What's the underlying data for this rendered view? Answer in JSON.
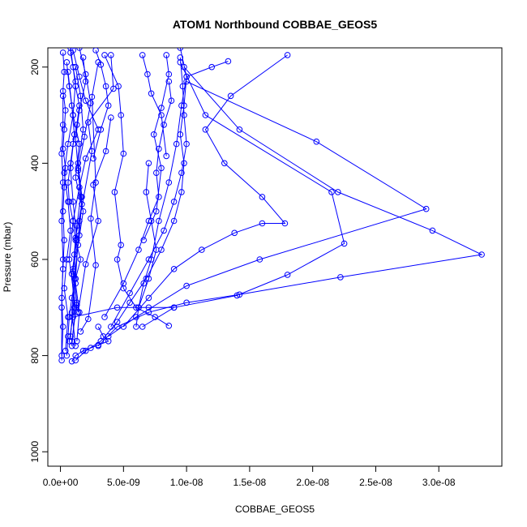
{
  "chart_data": {
    "type": "line",
    "title": "ATOM1 Northbound COBBAE_GEOS5",
    "xlabel": "COBBAE_GEOS5",
    "ylabel": "Pressure (mbar)",
    "xlim": [
      -1e-09,
      3.5e-08
    ],
    "ylim": [
      1030,
      160
    ],
    "y_reversed": true,
    "x_ticks": [
      0,
      5e-09,
      1e-08,
      1.5e-08,
      2e-08,
      2.5e-08,
      3e-08
    ],
    "x_tick_labels": [
      "0.0e+00",
      "5.0e-09",
      "1.0e-08",
      "1.5e-08",
      "2.0e-08",
      "2.5e-08",
      "3.0e-08"
    ],
    "y_ticks": [
      200,
      400,
      600,
      800,
      1000
    ],
    "y_tick_labels": [
      "200",
      "400",
      "600",
      "800",
      "1000"
    ],
    "grid": false,
    "marker": "open-circle",
    "color": "#0000ff",
    "series": [
      {
        "x": [
          8e-10,
          1e-09,
          1.2e-09,
          1.5e-09,
          1.3e-09,
          1e-09,
          8e-10,
          6e-10,
          7e-10,
          1e-09,
          1.2e-09,
          1.6e-09,
          1.2e-09,
          9e-10,
          7e-10,
          6e-10,
          5e-10
        ],
        "y": [
          160,
          200,
          240,
          280,
          320,
          360,
          400,
          440,
          480,
          520,
          560,
          600,
          640,
          680,
          720,
          760,
          800
        ]
      },
      {
        "x": [
          2e-10,
          3e-10,
          2e-10,
          4e-10,
          3e-10,
          2e-10,
          4e-10,
          3e-10,
          2e-10,
          3e-10,
          2e-10,
          1e-10,
          2e-10,
          1e-10
        ],
        "y": [
          170,
          210,
          250,
          290,
          330,
          370,
          410,
          450,
          500,
          560,
          620,
          680,
          740,
          810
        ]
      },
      {
        "x": [
          1.8e-09,
          2e-09,
          1.5e-09,
          1.2e-09,
          1.4e-09,
          1.6e-09,
          1.3e-09,
          1.1e-09,
          1.2e-09,
          1.5e-09,
          1.3e-09
        ],
        "y": [
          180,
          230,
          290,
          350,
          410,
          470,
          530,
          590,
          650,
          710,
          770
        ]
      },
      {
        "x": [
          4e-09,
          4.2e-09,
          2.2e-09,
          2.5e-09,
          1.5e-09,
          1.2e-09,
          8e-10
        ],
        "y": [
          175,
          245,
          315,
          375,
          520,
          640,
          760
        ]
      },
      {
        "x": [
          9.5e-09,
          1e-08,
          9.8e-09,
          9.5e-09,
          9.8e-09,
          9.6e-09,
          9e-09,
          8e-09,
          6.8e-09,
          5.5e-09,
          4.5e-09,
          3.2e-09,
          2e-09,
          1.2e-09
        ],
        "y": [
          160,
          220,
          280,
          340,
          400,
          460,
          520,
          580,
          640,
          690,
          730,
          770,
          790,
          810
        ]
      },
      {
        "x": [
          9.5e-09,
          9.7e-09,
          9.8e-09,
          1e-08,
          9.6e-09,
          9e-09,
          8.2e-09,
          7e-09,
          5.5e-09,
          4e-09
        ],
        "y": [
          180,
          240,
          300,
          360,
          420,
          480,
          540,
          600,
          670,
          740
        ]
      },
      {
        "x": [
          8.6e-09,
          8.8e-09,
          8.2e-09,
          7.8e-09,
          7.6e-09,
          7.8e-09,
          7e-09,
          6.2e-09,
          5e-09,
          3.5e-09
        ],
        "y": [
          230,
          270,
          320,
          370,
          420,
          470,
          520,
          580,
          650,
          720
        ]
      },
      {
        "x": [
          1.8e-08,
          1.35e-08,
          1.15e-08,
          1.3e-08,
          1.6e-08,
          1.78e-08,
          1.6e-08,
          1.38e-08,
          1.12e-08,
          9e-09,
          7e-09,
          5e-09
        ],
        "y": [
          175,
          260,
          330,
          400,
          470,
          525,
          525,
          545,
          580,
          620,
          680,
          740
        ]
      },
      {
        "x": [
          1e-08,
          2.03e-08,
          2.9e-08,
          1.58e-08,
          1e-08,
          6e-09,
          3.8e-09
        ],
        "y": [
          230,
          355,
          495,
          600,
          655,
          720,
          760
        ]
      },
      {
        "x": [
          9.8e-09,
          1.42e-08,
          2.2e-08,
          2.95e-08,
          3.34e-08,
          2.22e-08,
          1.42e-08,
          1e-08,
          7e-09,
          4.5e-09,
          3e-09
        ],
        "y": [
          200,
          330,
          460,
          540,
          590,
          637,
          673,
          690,
          710,
          740,
          780
        ]
      },
      {
        "x": [
          9.5e-09,
          1.15e-08,
          2.15e-08,
          2.25e-08,
          1.8e-08,
          1.4e-08,
          9e-09,
          6.5e-09
        ],
        "y": [
          190,
          300,
          460,
          567,
          632,
          675,
          700,
          740
        ]
      },
      {
        "x": [
          3.5e-09,
          4.6e-09,
          4.8e-09,
          5e-09,
          4.3e-09,
          4.8e-09,
          4.5e-09,
          5e-09,
          6e-09,
          7.5e-09,
          8.6e-09
        ],
        "y": [
          175,
          240,
          300,
          380,
          460,
          570,
          600,
          660,
          700,
          720,
          738
        ]
      },
      {
        "x": [
          1.33e-08,
          1.2e-08,
          1e-08,
          9.6e-09,
          9.2e-09,
          8.6e-09,
          7.8e-09,
          7.2e-09,
          6.6e-09,
          6.2e-09,
          6e-09
        ],
        "y": [
          188,
          200,
          220,
          280,
          360,
          440,
          520,
          600,
          650,
          700,
          740
        ]
      },
      {
        "x": [
          1e-09,
          1.5e-09,
          2e-09,
          3e-09,
          2e-09,
          1.5e-09,
          1e-09,
          7e-10,
          1.2e-09,
          9e-10
        ],
        "y": [
          165,
          220,
          270,
          330,
          390,
          450,
          520,
          600,
          700,
          780
        ]
      },
      {
        "x": [
          5e-10,
          7e-10,
          1e-09,
          6e-10,
          3e-10,
          6e-10,
          8e-10,
          5e-10,
          3e-10,
          6e-10,
          4e-10
        ],
        "y": [
          190,
          240,
          300,
          360,
          420,
          480,
          540,
          600,
          660,
          720,
          790
        ]
      },
      {
        "x": [
          3e-09,
          2.5e-09,
          2.8e-09,
          2.4e-09,
          2.8e-09,
          2.2e-09,
          1.6e-09
        ],
        "y": [
          190,
          262,
          440,
          515,
          612,
          724,
          750
        ]
      },
      {
        "x": [
          1.2e-09,
          1.6e-09,
          1.8e-09,
          1.4e-09,
          1.7e-09,
          1.5e-09,
          1e-09,
          1.3e-09,
          9e-10
        ],
        "y": [
          200,
          260,
          330,
          400,
          470,
          550,
          620,
          690,
          770
        ]
      },
      {
        "x": [
          6e-10,
          9e-10,
          1.1e-09,
          8e-10,
          1e-09,
          1.3e-09,
          9e-10,
          1.1e-09,
          7e-10
        ],
        "y": [
          210,
          280,
          340,
          410,
          480,
          560,
          630,
          700,
          770
        ]
      },
      {
        "x": [
          1.5e-09,
          2e-09,
          2.4e-09,
          1.9e-09,
          1.4e-09,
          1.7e-09,
          1.2e-09,
          1e-09,
          1.3e-09
        ],
        "y": [
          160,
          215,
          275,
          345,
          415,
          485,
          555,
          625,
          695
        ]
      },
      {
        "x": [
          2e-10,
          2e-10,
          1e-10,
          2e-10,
          1e-10,
          2e-10,
          1e-10,
          1e-10
        ],
        "y": [
          260,
          320,
          380,
          440,
          520,
          600,
          700,
          800
        ]
      },
      {
        "x": [
          8e-10,
          1.2e-09,
          1e-09,
          1.5e-09,
          1.2e-09,
          1.8e-09,
          1.4e-09,
          1.1e-09,
          9e-10,
          1.2e-09
        ],
        "y": [
          170,
          230,
          300,
          360,
          430,
          500,
          570,
          640,
          710,
          780
        ]
      },
      {
        "x": [
          1e-09,
          4.5e-09,
          7e-09,
          9e-09
        ],
        "y": [
          720,
          700,
          700,
          700
        ]
      },
      {
        "x": [
          7e-09,
          6.8e-09,
          7.2e-09,
          7.6e-09,
          7e-09,
          6.2e-09
        ],
        "y": [
          400,
          460,
          520,
          580,
          640,
          700
        ]
      },
      {
        "x": [
          6.5e-09,
          6.9e-09,
          7.2e-09,
          8e-09,
          8.4e-09
        ],
        "y": [
          175,
          215,
          255,
          300,
          385
        ]
      },
      {
        "x": [
          4e-09,
          3.6e-09,
          2.6e-09,
          3e-09,
          2e-09,
          1.4e-09
        ],
        "y": [
          305,
          375,
          445,
          520,
          610,
          710
        ]
      },
      {
        "x": [
          2.8e-09,
          3.2e-09,
          3.6e-09,
          3.8e-09,
          3.2e-09,
          2.6e-09
        ],
        "y": [
          165,
          195,
          240,
          280,
          330,
          390
        ]
      },
      {
        "x": [
          8.4e-09,
          8.6e-09,
          8e-09,
          7.4e-09,
          8e-09,
          7.6e-09,
          6.6e-09
        ],
        "y": [
          175,
          215,
          285,
          340,
          410,
          500,
          560
        ]
      },
      {
        "x": [
          3e-09,
          3.4e-09,
          3.8e-09,
          3e-09,
          2.4e-09,
          1.8e-09,
          1.2e-09,
          9e-10
        ],
        "y": [
          740,
          760,
          770,
          778,
          784,
          790,
          800,
          812
        ]
      }
    ]
  }
}
